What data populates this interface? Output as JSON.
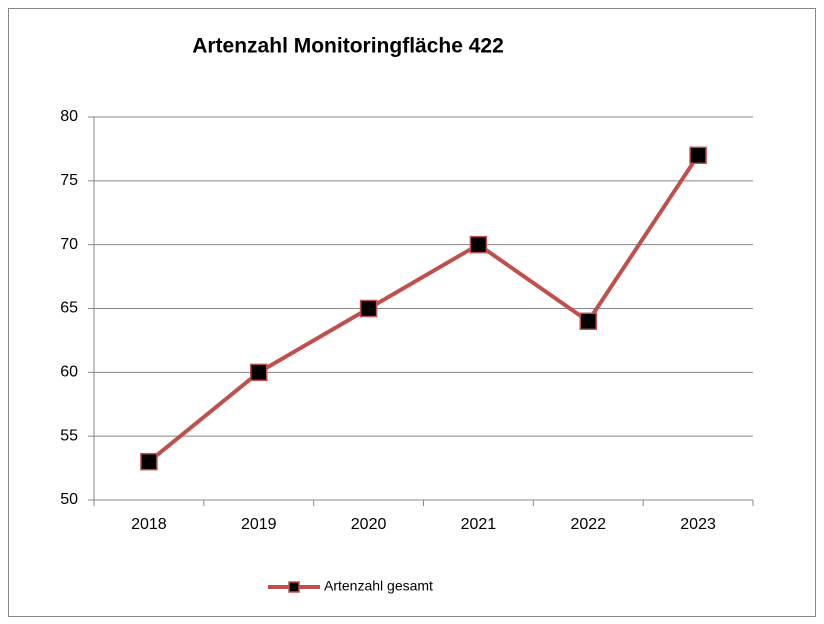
{
  "chart_data": {
    "type": "line",
    "title": "Artenzahl Monitoringfläche 422",
    "categories": [
      "2018",
      "2019",
      "2020",
      "2021",
      "2022",
      "2023"
    ],
    "series": [
      {
        "name": "Artenzahl gesamt",
        "color": "#c0504d",
        "marker_color": "#000000",
        "values": [
          53,
          60,
          65,
          70,
          64,
          77
        ]
      }
    ],
    "ylim": [
      50,
      80
    ],
    "yticks": [
      50,
      55,
      60,
      65,
      70,
      75,
      80
    ],
    "grid": true,
    "legend": "bottom"
  }
}
